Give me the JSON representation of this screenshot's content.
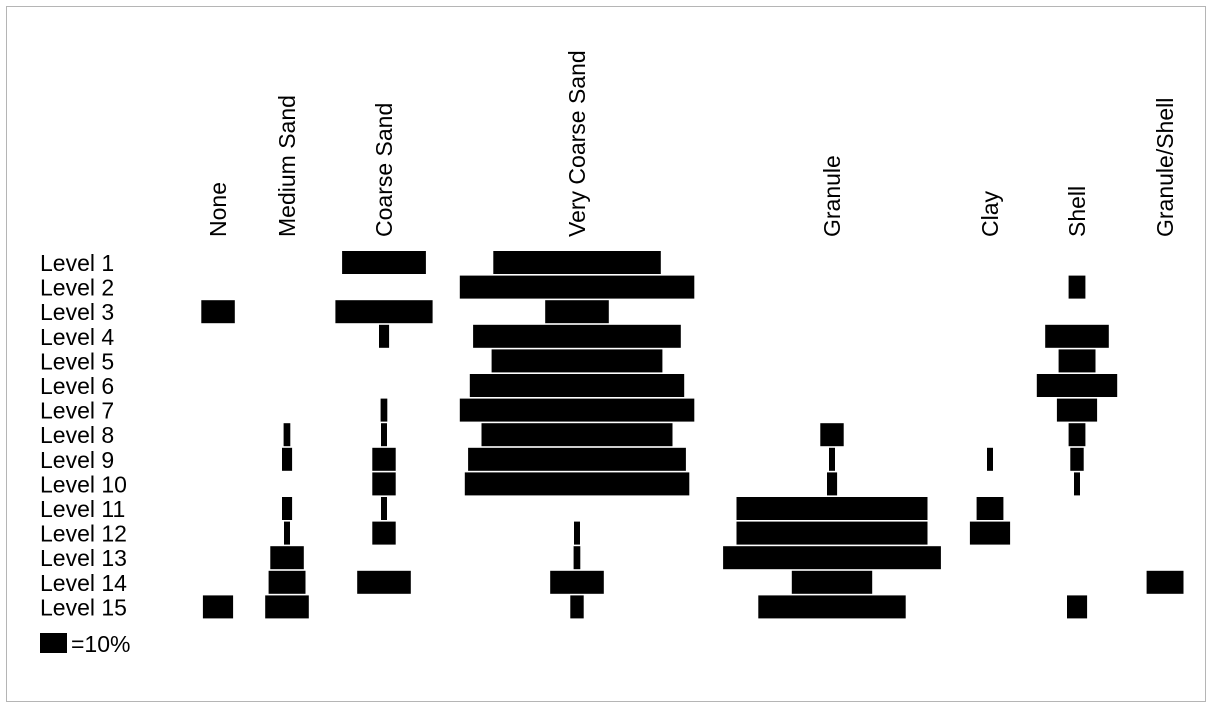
{
  "chart_data": {
    "type": "kite",
    "title": "",
    "categories": [
      "None",
      "Medium Sand",
      "Coarse Sand",
      "Very Coarse Sand",
      "Granule",
      "Clay",
      "Shell",
      "Granule/Shell"
    ],
    "levels": [
      "Level 1",
      "Level 2",
      "Level 3",
      "Level 4",
      "Level 5",
      "Level 6",
      "Level 7",
      "Level 8",
      "Level 9",
      "Level 10",
      "Level 11",
      "Level 12",
      "Level 13",
      "Level 14",
      "Level 15"
    ],
    "unit": "%",
    "legend": {
      "label": "=10%",
      "value": 10
    },
    "values": [
      [
        0,
        0,
        25,
        50,
        0,
        0,
        0,
        0
      ],
      [
        0,
        0,
        0,
        70,
        0,
        0,
        5,
        0
      ],
      [
        10,
        0,
        29,
        19,
        0,
        0,
        0,
        0
      ],
      [
        0,
        0,
        3,
        62,
        0,
        0,
        19,
        0
      ],
      [
        0,
        0,
        0,
        51,
        0,
        0,
        11,
        0
      ],
      [
        0,
        0,
        0,
        64,
        0,
        0,
        24,
        0
      ],
      [
        0,
        0,
        2,
        70,
        0,
        0,
        12,
        0
      ],
      [
        0,
        2,
        1,
        57,
        7,
        0,
        5,
        0
      ],
      [
        0,
        3,
        7,
        65,
        1.5,
        1,
        4,
        0
      ],
      [
        0,
        0,
        7,
        67,
        3,
        0,
        1,
        0
      ],
      [
        0,
        3,
        1,
        0,
        57,
        8,
        0,
        0
      ],
      [
        0,
        1.5,
        7,
        1.5,
        57,
        12,
        0,
        0
      ],
      [
        0,
        10,
        0,
        2,
        65,
        0,
        0,
        0
      ],
      [
        0,
        11,
        16,
        16,
        24,
        0,
        0,
        11
      ],
      [
        9,
        13,
        0,
        4,
        44,
        0,
        6,
        0
      ]
    ],
    "colors": {
      "bar": "#000000",
      "frame": "#b5b5b5"
    }
  }
}
